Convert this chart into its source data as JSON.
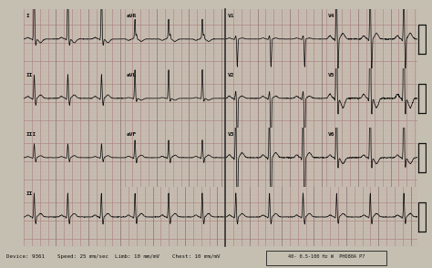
{
  "bg_color": "#c4bfb0",
  "grid_major_color": "#b08888",
  "grid_minor_color": "#ccaaaa",
  "ecg_color": "#111111",
  "label_color": "#111111",
  "footer_text": "Device: 9361    Speed: 25 mm/sec  Limb: 10 mm/mV    Chest: 10 mm/mV",
  "footer_right": "40- 0.5-100 Hz W  PHO80A P7",
  "lead_grid": [
    [
      "I",
      "aVR",
      "V1",
      "V4"
    ],
    [
      "II",
      "aVL",
      "V2",
      "V5"
    ],
    [
      "III",
      "aVF",
      "V3",
      "V6"
    ]
  ],
  "rhythm_lead": "II",
  "hr": 72,
  "fs": 150,
  "duration_col": 2.5,
  "duration_rhythm": 10.0,
  "col_ylim": 0.8,
  "lead_scales": {
    "I": 0.55,
    "II": 0.65,
    "III": 0.38,
    "aVR": -0.45,
    "aVL": 0.28,
    "aVF": 0.48,
    "V1": 0.35,
    "V2": 0.75,
    "V3": 0.95,
    "V4": 1.1,
    "V5": 1.4,
    "V6": 0.9
  }
}
